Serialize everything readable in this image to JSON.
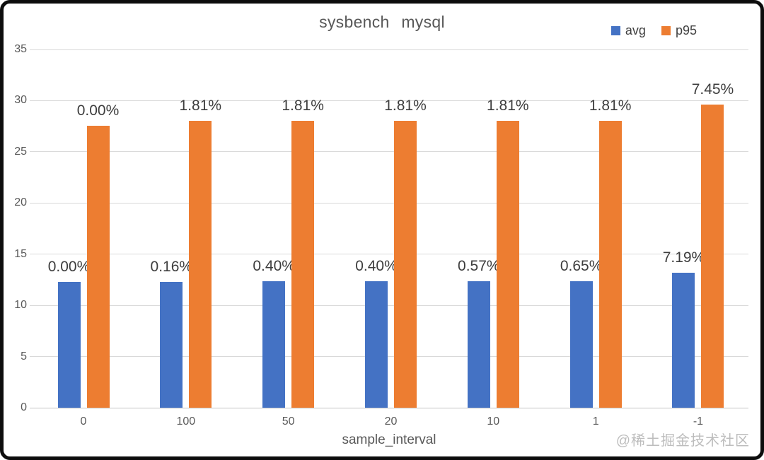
{
  "title": "sysbench mysql",
  "legend": [
    {
      "label": "avg",
      "color": "#4472C4"
    },
    {
      "label": "p95",
      "color": "#ED7D31"
    }
  ],
  "chart_data": {
    "type": "bar",
    "title": "sysbench mysql",
    "categories": [
      "0",
      "100",
      "50",
      "20",
      "10",
      "1",
      "-1"
    ],
    "series": [
      {
        "name": "avg",
        "color": "#4472C4",
        "values": [
          12.3,
          12.32,
          12.35,
          12.35,
          12.37,
          12.38,
          13.18
        ],
        "labels": [
          "0.00%",
          "0.16%",
          "0.40%",
          "0.40%",
          "0.57%",
          "0.65%",
          "7.19%"
        ]
      },
      {
        "name": "p95",
        "color": "#ED7D31",
        "values": [
          27.55,
          28.05,
          28.05,
          28.05,
          28.05,
          28.05,
          29.6
        ],
        "labels": [
          "0.00%",
          "1.81%",
          "1.81%",
          "1.81%",
          "1.81%",
          "1.81%",
          "7.45%"
        ]
      }
    ],
    "xlabel": "sample_interval",
    "ylabel": "",
    "ylim": [
      0,
      35
    ],
    "yticks": [
      0,
      5,
      10,
      15,
      20,
      25,
      30,
      35
    ],
    "grid": true,
    "legend_position": "top-right"
  },
  "watermark": "@稀土掘金技术社区"
}
